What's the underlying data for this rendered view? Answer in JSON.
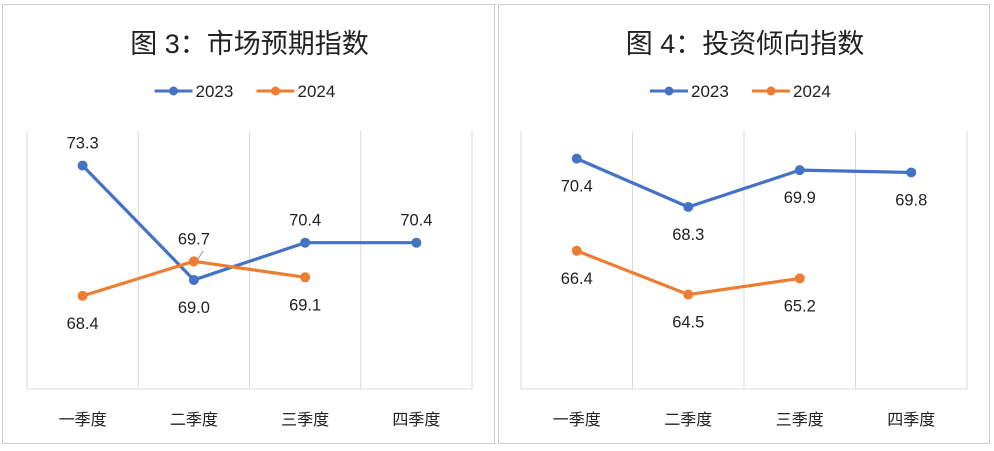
{
  "chart_data": [
    {
      "type": "line",
      "title": "图 3：市场预期指数",
      "categories": [
        "一季度",
        "二季度",
        "三季度",
        "四季度"
      ],
      "series": [
        {
          "name": "2023",
          "color": "#4472c4",
          "values": [
            73.3,
            69.0,
            70.4,
            70.4
          ],
          "labels": [
            "73.3",
            "69.0",
            "70.4",
            "70.4"
          ]
        },
        {
          "name": "2024",
          "color": "#ed7d31",
          "values": [
            68.4,
            69.7,
            69.1,
            null
          ],
          "labels": [
            "68.4",
            "69.7",
            "69.1",
            ""
          ]
        }
      ],
      "ylim": [
        64.9,
        74.6
      ],
      "xlabel": "",
      "ylabel": "",
      "grid": "vertical",
      "legend": "top-center"
    },
    {
      "type": "line",
      "title": "图 4：投资倾向指数",
      "categories": [
        "一季度",
        "二季度",
        "三季度",
        "四季度"
      ],
      "series": [
        {
          "name": "2023",
          "color": "#4472c4",
          "values": [
            70.4,
            68.3,
            69.9,
            69.8
          ],
          "labels": [
            "70.4",
            "68.3",
            "69.9",
            "69.8"
          ]
        },
        {
          "name": "2024",
          "color": "#ed7d31",
          "values": [
            66.4,
            64.5,
            65.2,
            null
          ],
          "labels": [
            "66.4",
            "64.5",
            "65.2",
            ""
          ]
        }
      ],
      "ylim": [
        60.4,
        71.6
      ],
      "xlabel": "",
      "ylabel": "",
      "grid": "vertical",
      "legend": "top-center"
    }
  ]
}
